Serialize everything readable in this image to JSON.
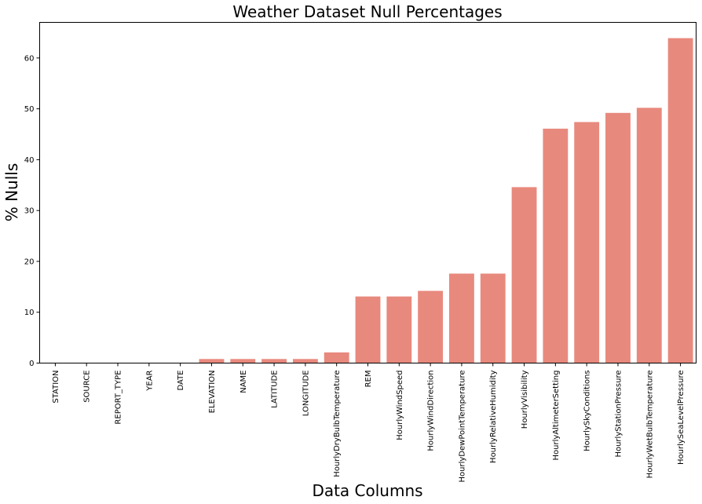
{
  "chart_data": {
    "type": "bar",
    "title": "Weather Dataset Null Percentages",
    "xlabel": "Data Columns",
    "ylabel": "% Nulls",
    "categories": [
      "STATION",
      "SOURCE",
      "REPORT_TYPE",
      "YEAR",
      "DATE",
      "ELEVATION",
      "NAME",
      "LATITUDE",
      "LONGITUDE",
      "HourlyDryBulbTemperature",
      "REM",
      "HourlyWindSpeed",
      "HourlyWindDirection",
      "HourlyDewPointTemperature",
      "HourlyRelativeHumidity",
      "HourlyVisibility",
      "HourlyAltimeterSetting",
      "HourlySkyConditions",
      "HourlyStationPressure",
      "HourlyWetBulbTemperature",
      "HourlySeaLevelPressure"
    ],
    "values": [
      0,
      0,
      0,
      0,
      0,
      0.8,
      0.8,
      0.8,
      0.8,
      2.1,
      13.1,
      13.1,
      14.2,
      17.6,
      17.6,
      34.6,
      46.1,
      47.4,
      49.2,
      50.2,
      63.9
    ],
    "yticks": [
      0,
      10,
      20,
      30,
      40,
      50,
      60
    ],
    "ylim": [
      0,
      67
    ],
    "bar_color": "#e8897d",
    "grid": false
  }
}
